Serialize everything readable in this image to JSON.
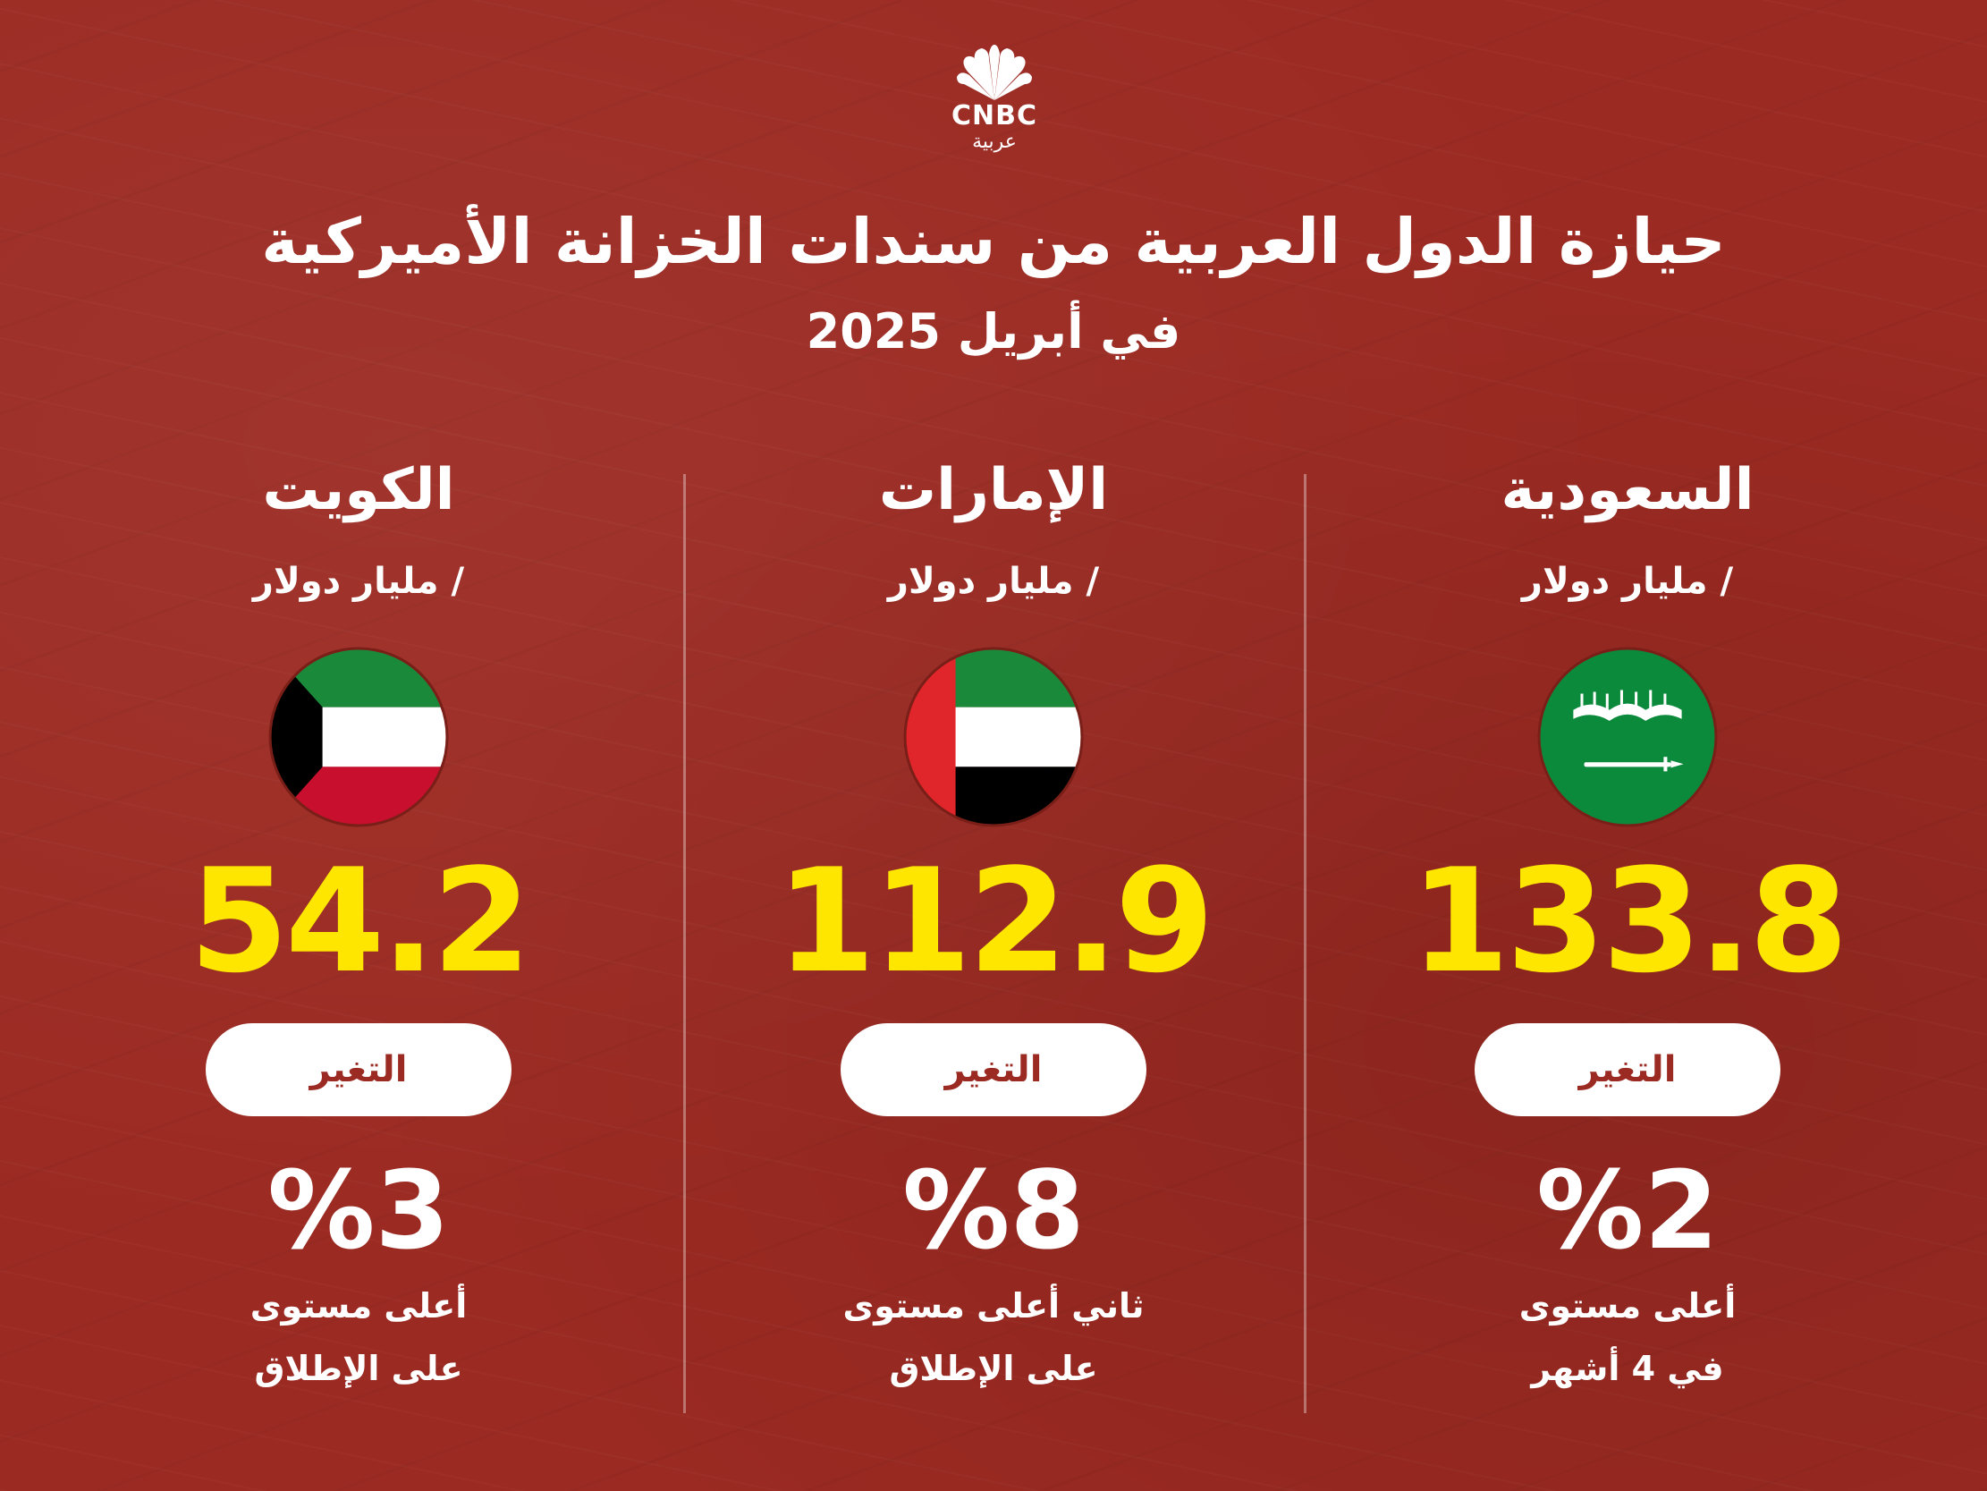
{
  "brand": {
    "name": "CNBC",
    "sub": "عربية"
  },
  "header": {
    "title": "حيازة الدول العربية من سندات الخزانة الأميركية",
    "subtitle": "في أبريل 2025"
  },
  "colors": {
    "background": "#9b2a22",
    "value": "#ffe600",
    "pill_text": "#9b2a22"
  },
  "columns": [
    {
      "country": "الكويت",
      "unit": "/ مليار دولار",
      "flag_icon": "kuwait-flag-icon",
      "value": "54.2",
      "change_label": "التغير",
      "change": "%3",
      "note_line1": "أعلى مستوى",
      "note_line2": "على الإطلاق"
    },
    {
      "country": "الإمارات",
      "unit": "/ مليار دولار",
      "flag_icon": "uae-flag-icon",
      "value": "112.9",
      "change_label": "التغير",
      "change": "%8",
      "note_line1": "ثاني أعلى مستوى",
      "note_line2": "على الإطلاق"
    },
    {
      "country": "السعودية",
      "unit": "/ مليار دولار",
      "flag_icon": "saudi-flag-icon",
      "value": "133.8",
      "change_label": "التغير",
      "change": "%2",
      "note_line1": "أعلى مستوى",
      "note_line2": "في 4 أشهر"
    }
  ]
}
